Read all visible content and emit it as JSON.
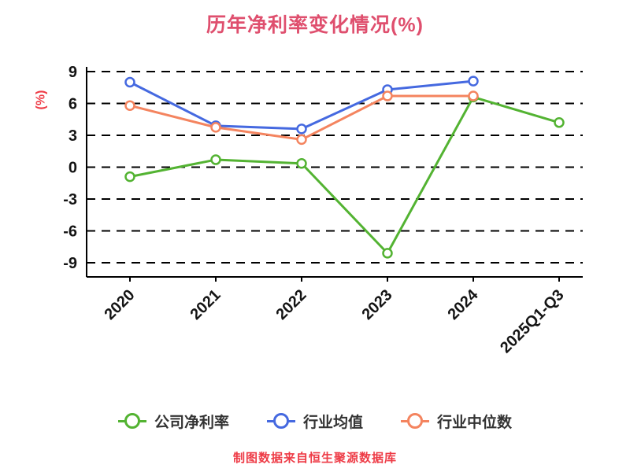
{
  "colors": {
    "title": "#df4f6e",
    "ylabel_text": "#ee3b46",
    "footer_text": "#ee3b46",
    "axis": "#000000",
    "tick_text": "#141414",
    "background": "#ffffff"
  },
  "chart_data": {
    "type": "line",
    "title": "历年净利率变化情况(%)",
    "ylabel": "(%)",
    "xlabel": "",
    "categories": [
      "2020",
      "2021",
      "2022",
      "2023",
      "2024",
      "2025Q1-Q3"
    ],
    "yticks": [
      9,
      6,
      3,
      0,
      -3,
      -6,
      -9
    ],
    "ylim": [
      -9,
      9
    ],
    "grid": "horizontal-dashed",
    "legend_position": "bottom",
    "marker": "hollow-circle",
    "series": [
      {
        "name": "公司净利率",
        "color": "#53b332",
        "values": [
          -0.9,
          0.7,
          0.35,
          -8.1,
          6.6,
          4.2
        ]
      },
      {
        "name": "行业均值",
        "color": "#4569e0",
        "values": [
          8.0,
          3.9,
          3.6,
          7.3,
          8.1,
          null
        ]
      },
      {
        "name": "行业中位数",
        "color": "#f4845f",
        "values": [
          5.8,
          3.75,
          2.6,
          6.7,
          6.7,
          null
        ]
      }
    ],
    "source_note": "制图数据来自恒生聚源数据库"
  }
}
